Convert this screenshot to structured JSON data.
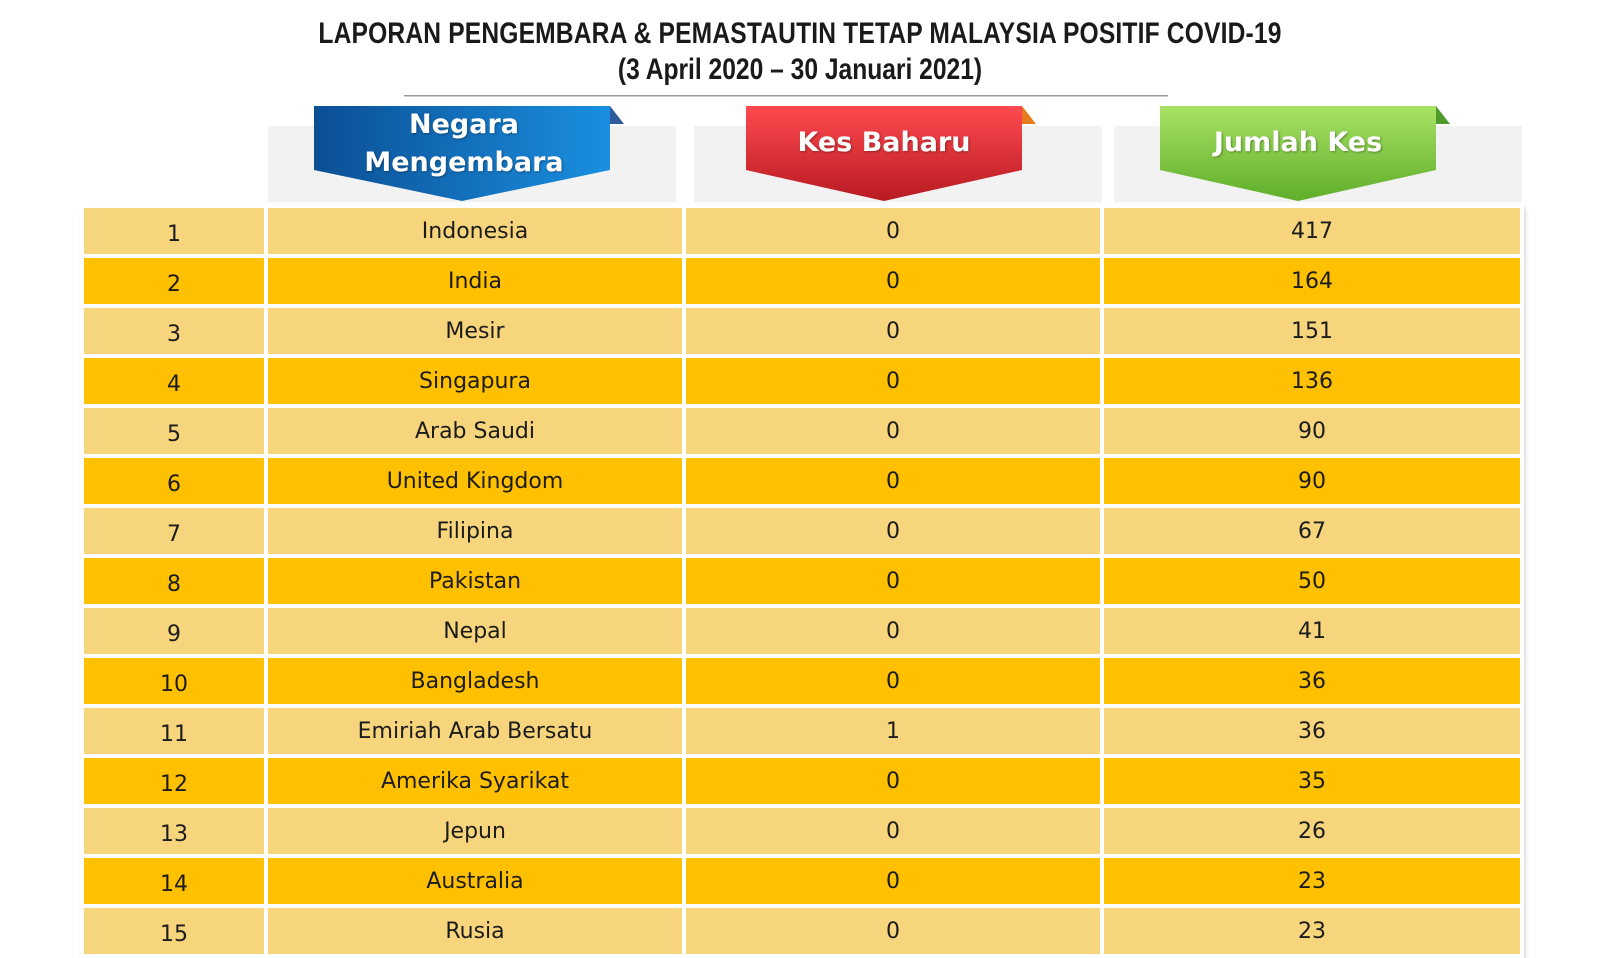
{
  "title": {
    "line1": "LAPORAN PENGEMBARA & PEMASTAUTIN TETAP MALAYSIA POSITIF COVID-19",
    "line2": "(3 April 2020 –  30 Januari 2021)"
  },
  "headers": {
    "country_line1": "Negara",
    "country_line2": "Mengembara",
    "new_cases": "Kes Baharu",
    "total_cases": "Jumlah Kes"
  },
  "colors": {
    "row_light": "#f7d57d",
    "row_dark": "#ffc000",
    "badge_blue": "#0b6fc4",
    "badge_red": "#e8343a",
    "badge_green": "#86d14a"
  },
  "chart_data": {
    "type": "table",
    "columns": [
      "",
      "Negara Mengembara",
      "Kes Baharu",
      "Jumlah Kes"
    ],
    "rows": [
      {
        "no": "1",
        "country": "Indonesia",
        "new": "0",
        "total": "417"
      },
      {
        "no": "2",
        "country": "India",
        "new": "0",
        "total": "164"
      },
      {
        "no": "3",
        "country": "Mesir",
        "new": "0",
        "total": "151"
      },
      {
        "no": "4",
        "country": "Singapura",
        "new": "0",
        "total": "136"
      },
      {
        "no": "5",
        "country": "Arab Saudi",
        "new": "0",
        "total": "90"
      },
      {
        "no": "6",
        "country": "United Kingdom",
        "new": "0",
        "total": "90"
      },
      {
        "no": "7",
        "country": "Filipina",
        "new": "0",
        "total": "67"
      },
      {
        "no": "8",
        "country": "Pakistan",
        "new": "0",
        "total": "50"
      },
      {
        "no": "9",
        "country": "Nepal",
        "new": "0",
        "total": "41"
      },
      {
        "no": "10",
        "country": "Bangladesh",
        "new": "0",
        "total": "36"
      },
      {
        "no": "11",
        "country": "Emiriah Arab Bersatu",
        "new": "1",
        "total": "36"
      },
      {
        "no": "12",
        "country": "Amerika Syarikat",
        "new": "0",
        "total": "35"
      },
      {
        "no": "13",
        "country": "Jepun",
        "new": "0",
        "total": "26"
      },
      {
        "no": "14",
        "country": "Australia",
        "new": "0",
        "total": "23"
      },
      {
        "no": "15",
        "country": "Rusia",
        "new": "0",
        "total": "23"
      }
    ]
  }
}
